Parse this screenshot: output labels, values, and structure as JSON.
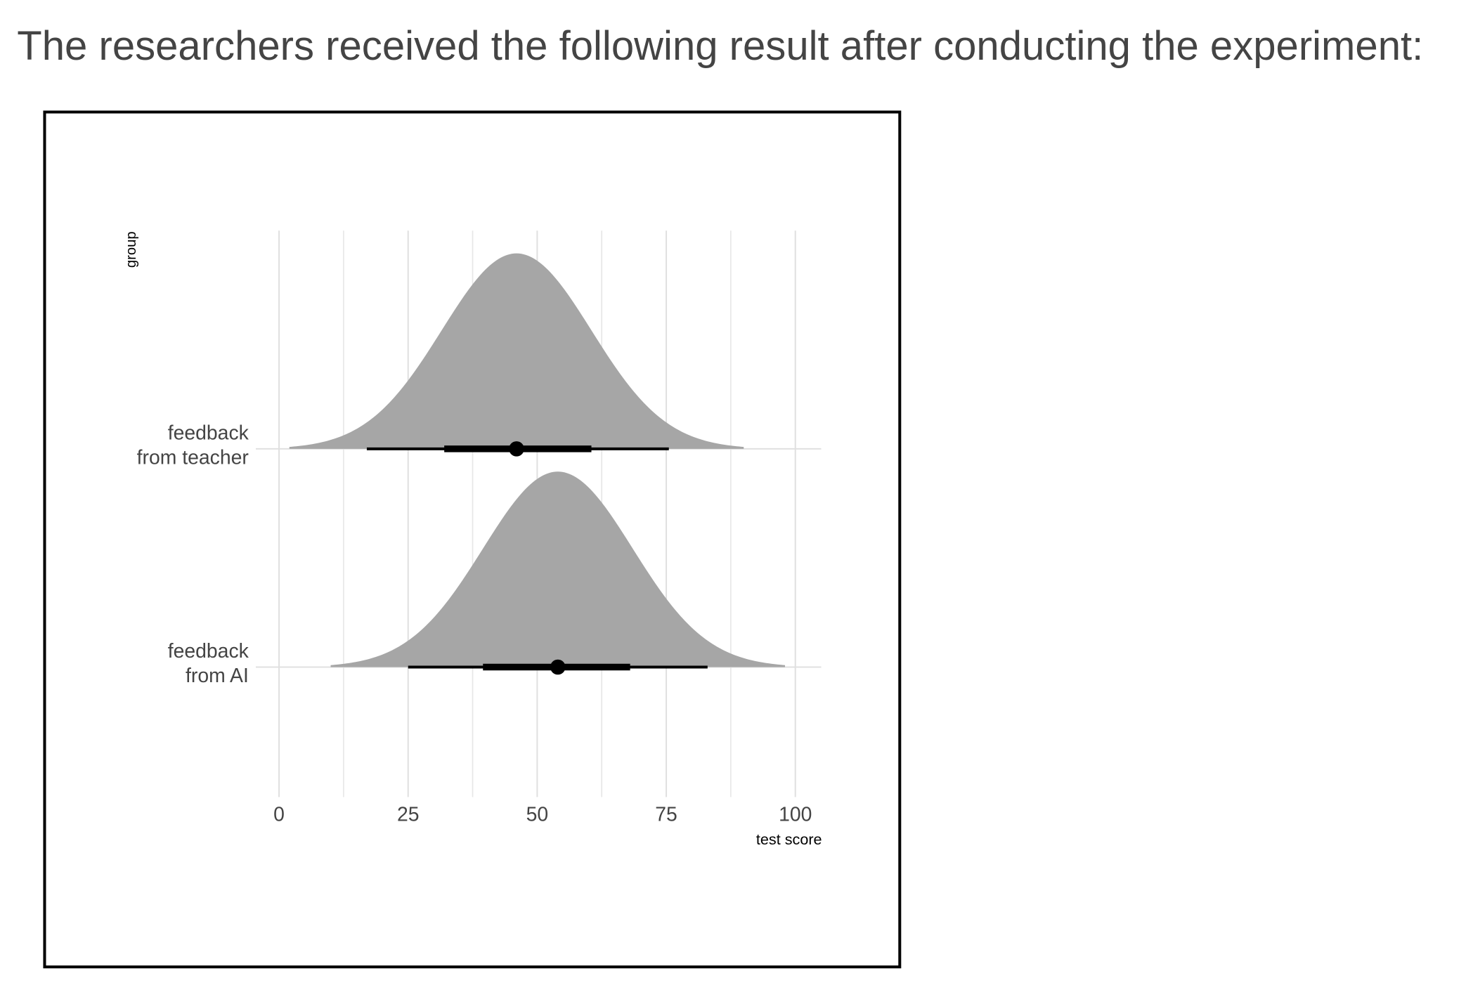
{
  "heading": "The researchers received the following result after conducting the experiment:",
  "chart_data": {
    "type": "halfeye",
    "x_label": "test score",
    "y_label": "group",
    "categories": [
      "feedback\nfrom teacher",
      "feedback\nfrom AI"
    ],
    "point": [
      46,
      54
    ],
    "sd": [
      14.5,
      14.5
    ],
    "interval_66": [
      [
        32,
        60.5
      ],
      [
        39.5,
        68
      ]
    ],
    "interval_95": [
      [
        17,
        75.5
      ],
      [
        25,
        83
      ]
    ],
    "density_range": [
      [
        2,
        90
      ],
      [
        10,
        98
      ]
    ],
    "color": "#a6a6a6",
    "xlim": [
      -4.5,
      105
    ],
    "xticks": [
      0,
      25,
      50,
      75,
      100
    ],
    "xminorticks": [
      12.5,
      37.5,
      62.5,
      87.5
    ],
    "grid": true
  }
}
